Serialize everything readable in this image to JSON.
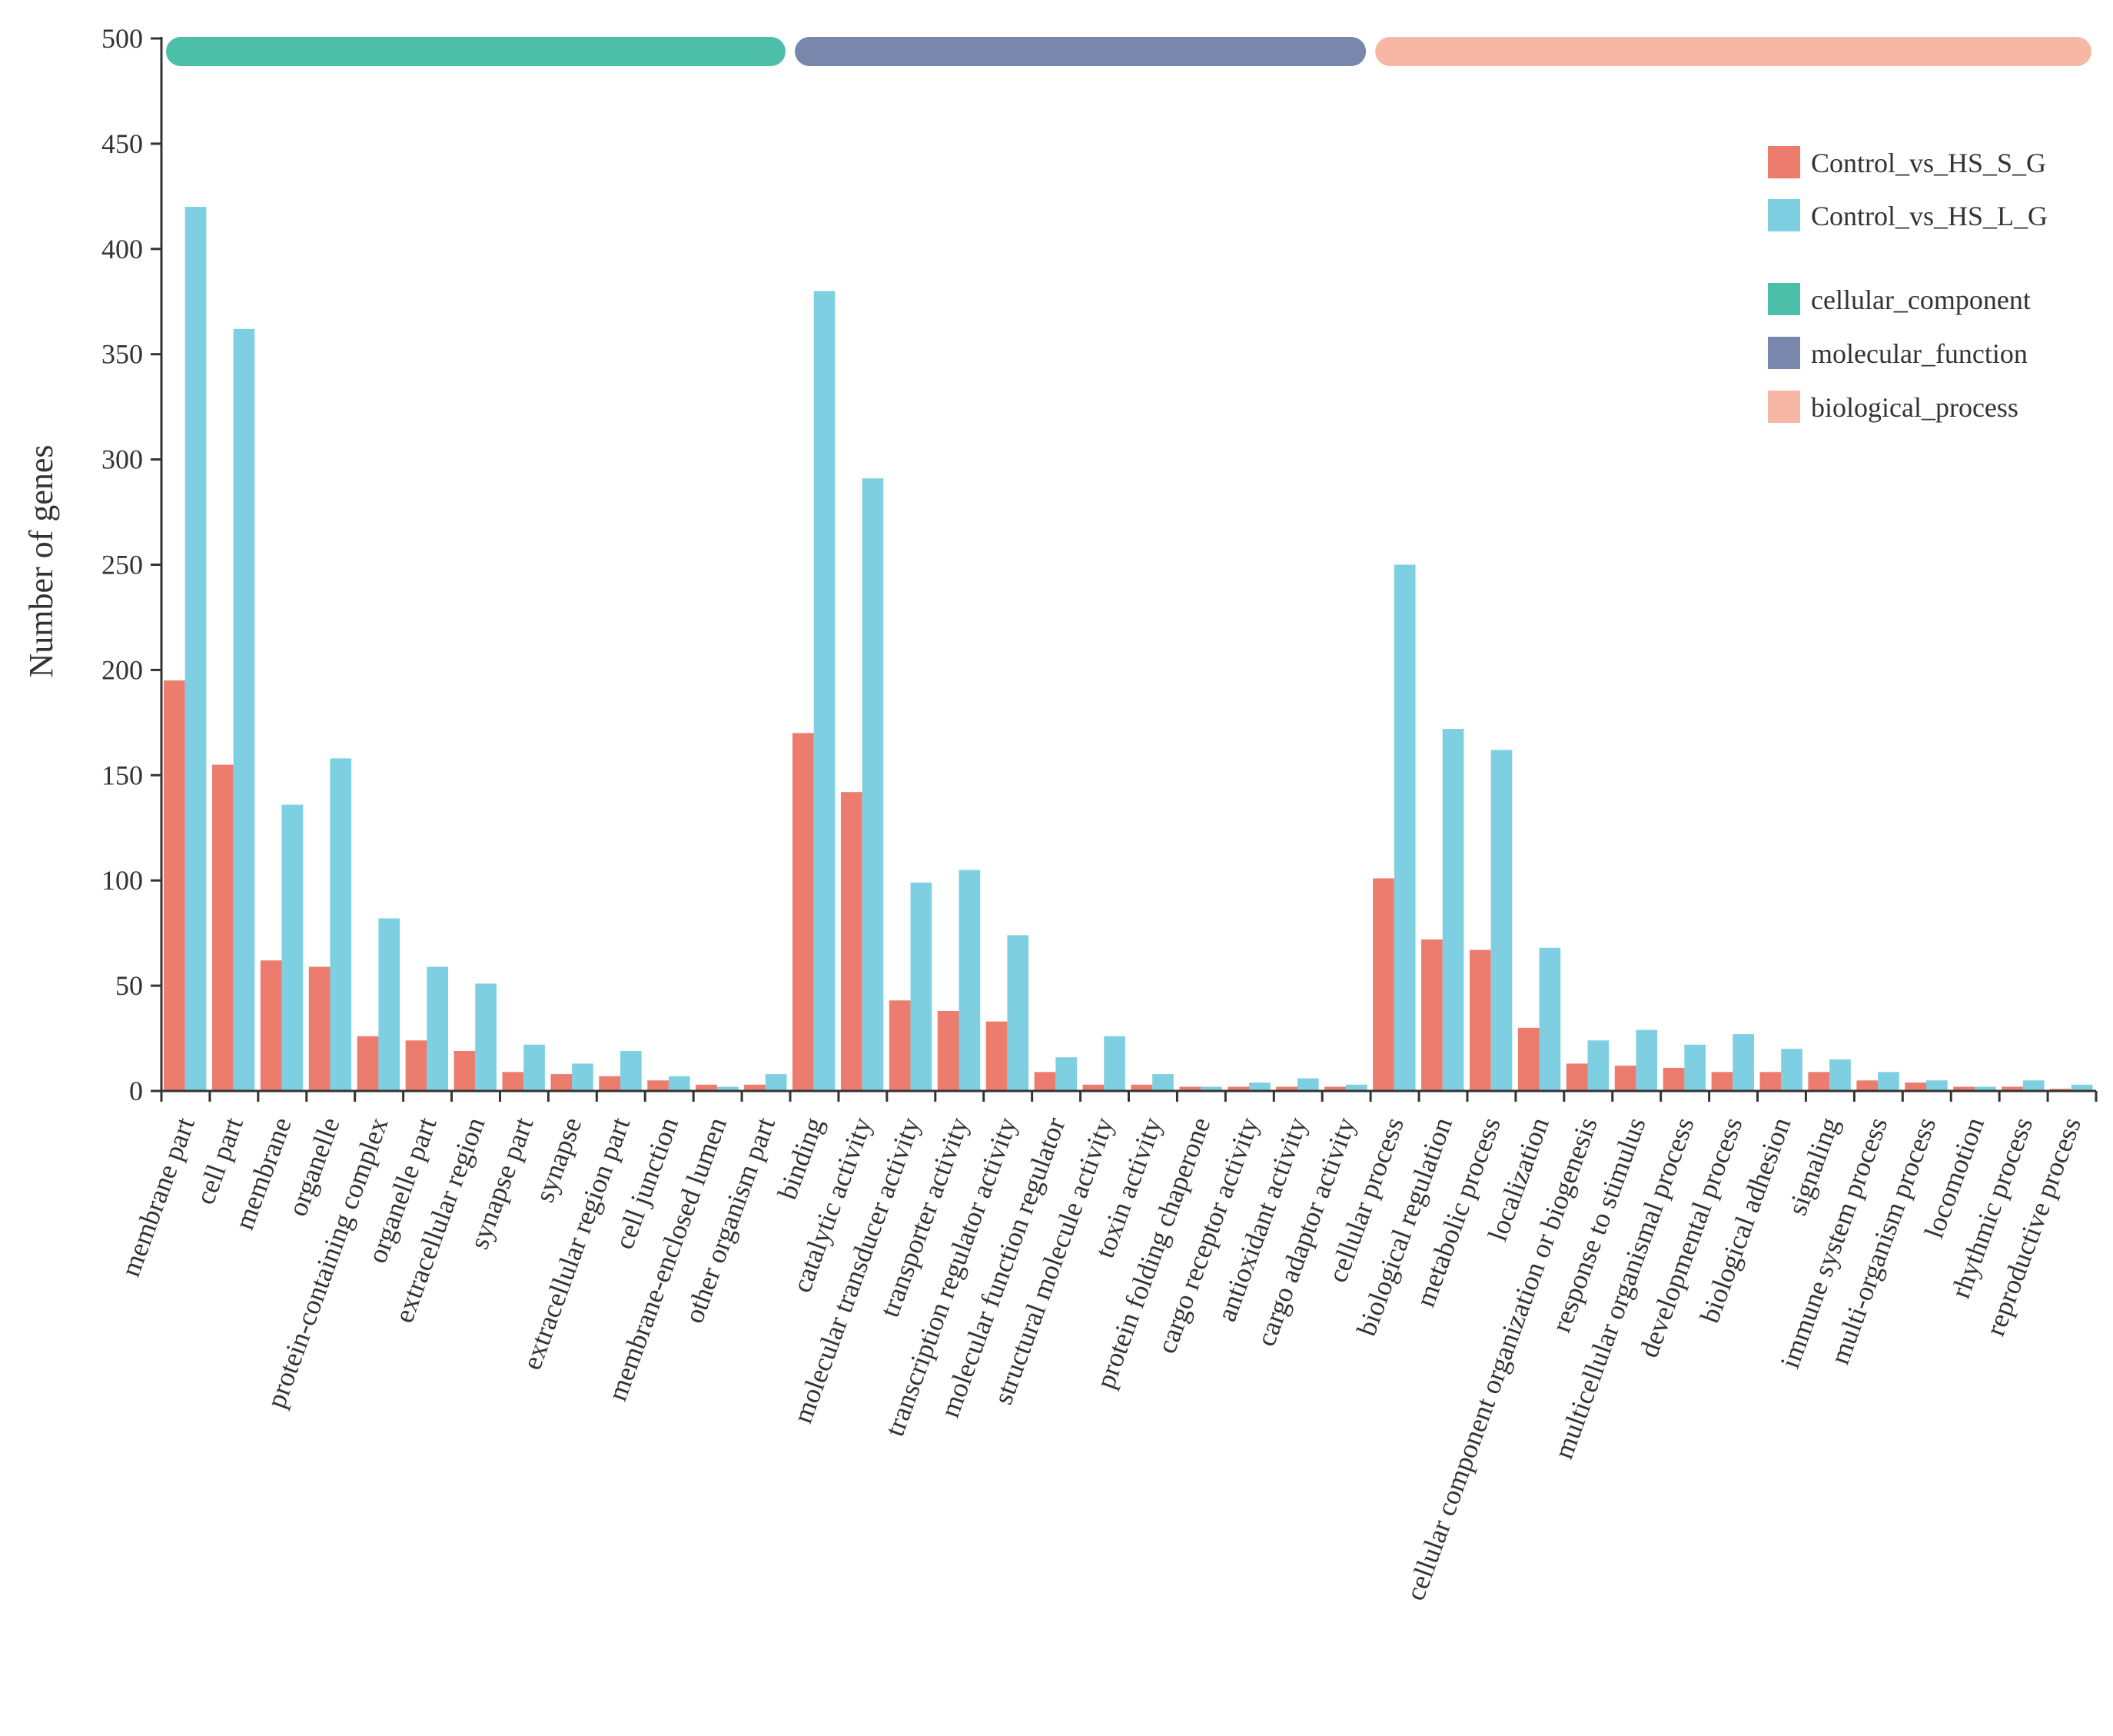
{
  "chart_data": {
    "type": "bar",
    "title": "",
    "xlabel": "",
    "ylabel": "Number of genes",
    "ylim": [
      0,
      500
    ],
    "yticks": [
      0,
      50,
      100,
      150,
      200,
      250,
      300,
      350,
      400,
      450,
      500
    ],
    "grid": false,
    "legend_position": "top-right",
    "categories": [
      "membrane part",
      "cell part",
      "membrane",
      "organelle",
      "protein-containing complex",
      "organelle part",
      "extracellular region",
      "synapse part",
      "synapse",
      "extracellular region part",
      "cell junction",
      "membrane-enclosed lumen",
      "other organism part",
      "binding",
      "catalytic activity",
      "molecular transducer activity",
      "transporter activity",
      "transcription regulator activity",
      "molecular function regulator",
      "structural molecule activity",
      "toxin activity",
      "protein folding chaperone",
      "cargo receptor activity",
      "antioxidant activity",
      "cargo adaptor activity",
      "cellular process",
      "biological regulation",
      "metabolic process",
      "localization",
      "cellular component organization or biogenesis",
      "response to stimulus",
      "multicellular organismal process",
      "developmental process",
      "biological adhesion",
      "signaling",
      "immune system process",
      "multi-organism process",
      "locomotion",
      "rhythmic process",
      "reproductive process"
    ],
    "series": [
      {
        "name": "Control_vs_HS_S_G",
        "color": "#EC7C6E",
        "values": [
          195,
          155,
          62,
          59,
          26,
          24,
          19,
          9,
          8,
          7,
          5,
          3,
          3,
          170,
          142,
          43,
          38,
          33,
          9,
          3,
          3,
          2,
          2,
          2,
          2,
          101,
          72,
          67,
          30,
          13,
          12,
          11,
          9,
          9,
          9,
          5,
          4,
          2,
          2,
          1
        ]
      },
      {
        "name": "Control_vs_HS_L_G",
        "color": "#7FCFE2",
        "values": [
          420,
          362,
          136,
          158,
          82,
          59,
          51,
          22,
          13,
          19,
          7,
          2,
          8,
          380,
          291,
          99,
          105,
          74,
          16,
          26,
          8,
          2,
          4,
          6,
          3,
          250,
          172,
          162,
          68,
          24,
          29,
          22,
          27,
          20,
          15,
          9,
          5,
          2,
          5,
          3
        ]
      }
    ],
    "groups": [
      {
        "name": "cellular_component",
        "color": "#4DBFA8",
        "start": 0,
        "end": 12
      },
      {
        "name": "molecular_function",
        "color": "#7887AB",
        "start": 13,
        "end": 24
      },
      {
        "name": "biological_process",
        "color": "#F6B8A4",
        "start": 25,
        "end": 39
      }
    ]
  }
}
